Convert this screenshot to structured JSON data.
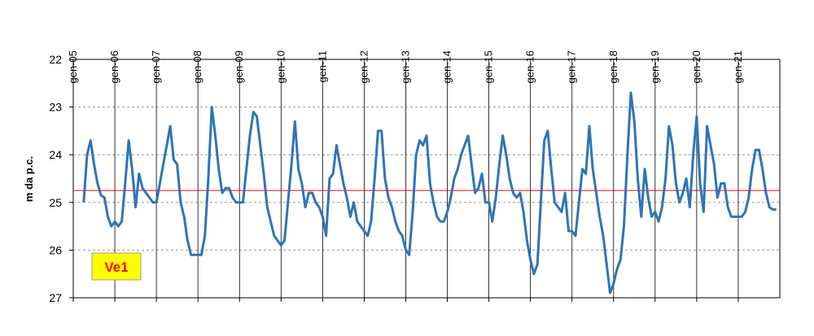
{
  "chart_data": {
    "type": "line",
    "y_label": "m da p.c.",
    "annotation": "Ve1",
    "x": [
      "2005-01",
      "2005-02",
      "2005-03",
      "2005-04",
      "2005-05",
      "2005-06",
      "2005-07",
      "2005-08",
      "2005-09",
      "2005-10",
      "2005-11",
      "2005-12",
      "2006-01",
      "2006-02",
      "2006-03",
      "2006-04",
      "2006-05",
      "2006-06",
      "2006-07",
      "2006-08",
      "2006-09",
      "2006-10",
      "2006-11",
      "2006-12",
      "2007-01",
      "2007-02",
      "2007-03",
      "2007-04",
      "2007-05",
      "2007-06",
      "2007-07",
      "2007-08",
      "2007-09",
      "2007-10",
      "2007-11",
      "2007-12",
      "2008-01",
      "2008-02",
      "2008-03",
      "2008-04",
      "2008-05",
      "2008-06",
      "2008-07",
      "2008-08",
      "2008-09",
      "2008-10",
      "2008-11",
      "2008-12",
      "2009-01",
      "2009-02",
      "2009-03",
      "2009-04",
      "2009-05",
      "2009-06",
      "2009-07",
      "2009-08",
      "2009-09",
      "2009-10",
      "2009-11",
      "2009-12",
      "2010-01",
      "2010-02",
      "2010-03",
      "2010-04",
      "2010-05",
      "2010-06",
      "2010-07",
      "2010-08",
      "2010-09",
      "2010-10",
      "2010-11",
      "2010-12",
      "2011-01",
      "2011-02",
      "2011-03",
      "2011-04",
      "2011-05",
      "2011-06",
      "2011-07",
      "2011-08",
      "2011-09",
      "2011-10",
      "2011-11",
      "2011-12",
      "2012-01",
      "2012-02",
      "2012-03",
      "2012-04",
      "2012-05",
      "2012-06",
      "2012-07",
      "2012-08",
      "2012-09",
      "2012-10",
      "2012-11",
      "2012-12",
      "2013-01",
      "2013-02",
      "2013-03",
      "2013-04",
      "2013-05",
      "2013-06",
      "2013-07",
      "2013-08",
      "2013-09",
      "2013-10",
      "2013-11",
      "2013-12",
      "2014-01",
      "2014-02",
      "2014-03",
      "2014-04",
      "2014-05",
      "2014-06",
      "2014-07",
      "2014-08",
      "2014-09",
      "2014-10",
      "2014-11",
      "2014-12",
      "2015-01",
      "2015-02",
      "2015-03",
      "2015-04",
      "2015-05",
      "2015-06",
      "2015-07",
      "2015-08",
      "2015-09",
      "2015-10",
      "2015-11",
      "2015-12",
      "2016-01",
      "2016-02",
      "2016-03",
      "2016-04",
      "2016-05",
      "2016-06",
      "2016-07",
      "2016-08",
      "2016-09",
      "2016-10",
      "2016-11",
      "2016-12",
      "2017-01",
      "2017-02",
      "2017-03",
      "2017-04",
      "2017-05",
      "2017-06",
      "2017-07",
      "2017-08",
      "2017-09",
      "2017-10",
      "2017-11",
      "2017-12",
      "2018-01",
      "2018-02",
      "2018-03",
      "2018-04",
      "2018-05",
      "2018-06",
      "2018-07",
      "2018-08",
      "2018-09",
      "2018-10",
      "2018-11",
      "2018-12",
      "2019-01",
      "2019-02",
      "2019-03",
      "2019-04",
      "2019-05",
      "2019-06",
      "2019-07",
      "2019-08",
      "2019-09",
      "2019-10",
      "2019-11",
      "2019-12",
      "2020-01",
      "2020-02",
      "2020-03",
      "2020-04",
      "2020-05",
      "2020-06",
      "2020-07",
      "2020-08",
      "2020-09",
      "2020-10",
      "2020-11",
      "2020-12",
      "2021-01",
      "2021-02",
      "2021-03",
      "2021-04",
      "2021-05",
      "2021-06",
      "2021-07",
      "2021-08",
      "2021-09",
      "2021-10",
      "2021-11",
      "2021-12"
    ],
    "series": [
      {
        "color": "#2e75b6",
        "values": [
          null,
          null,
          null,
          25.0,
          24.0,
          23.7,
          24.2,
          24.6,
          24.85,
          24.9,
          25.3,
          25.5,
          25.4,
          25.5,
          25.4,
          24.6,
          23.7,
          24.3,
          25.1,
          24.4,
          24.7,
          24.8,
          24.9,
          25.0,
          25.0,
          24.6,
          24.2,
          23.8,
          23.4,
          24.1,
          24.2,
          25.0,
          25.3,
          25.8,
          26.1,
          26.1,
          26.1,
          26.1,
          25.7,
          24.5,
          23.0,
          23.6,
          24.3,
          24.8,
          24.7,
          24.7,
          24.9,
          25.0,
          25.0,
          25.0,
          24.3,
          23.6,
          23.1,
          23.2,
          23.8,
          24.4,
          25.1,
          25.4,
          25.7,
          25.8,
          25.9,
          25.8,
          25.0,
          24.2,
          23.3,
          24.3,
          24.6,
          25.1,
          24.8,
          24.8,
          25.0,
          25.1,
          25.3,
          25.7,
          24.5,
          24.4,
          23.8,
          24.2,
          24.6,
          24.9,
          25.3,
          25.0,
          25.4,
          25.5,
          25.6,
          25.7,
          25.4,
          24.5,
          23.5,
          23.5,
          24.5,
          24.9,
          25.1,
          25.4,
          25.6,
          25.7,
          26.0,
          26.1,
          25.2,
          24.0,
          23.7,
          23.8,
          23.6,
          24.6,
          25.0,
          25.3,
          25.4,
          25.4,
          25.2,
          24.9,
          24.5,
          24.3,
          24.0,
          23.8,
          23.6,
          24.2,
          24.8,
          24.7,
          24.4,
          25.0,
          25.0,
          25.4,
          24.9,
          24.2,
          23.6,
          24.0,
          24.5,
          24.8,
          24.9,
          24.8,
          25.2,
          25.8,
          26.2,
          26.5,
          26.3,
          25.0,
          23.7,
          23.5,
          24.3,
          25.0,
          25.1,
          25.2,
          24.8,
          25.6,
          25.6,
          25.7,
          25.0,
          24.3,
          24.4,
          23.4,
          24.3,
          24.8,
          25.3,
          25.7,
          26.3,
          26.9,
          26.7,
          26.4,
          26.2,
          25.5,
          24.0,
          22.7,
          23.3,
          24.5,
          25.3,
          24.3,
          24.9,
          25.3,
          25.2,
          25.4,
          25.1,
          24.5,
          23.4,
          23.8,
          24.6,
          25.0,
          24.8,
          24.5,
          25.1,
          24.0,
          23.2,
          24.6,
          25.2,
          23.4,
          23.8,
          24.2,
          24.9,
          24.6,
          24.6,
          25.1,
          25.3,
          25.3,
          25.3,
          25.3,
          25.2,
          24.9,
          24.3,
          23.9,
          23.9,
          24.3,
          24.8,
          25.1,
          25.15,
          25.15
        ]
      }
    ],
    "reference_line": {
      "value": 24.75,
      "color": "#ff0000"
    },
    "xlim": [
      "2005-01",
      "2022-01"
    ],
    "xticks": [
      {
        "value": "2005-01",
        "label": "gen-05"
      },
      {
        "value": "2006-01",
        "label": "gen-06"
      },
      {
        "value": "2007-01",
        "label": "gen-07"
      },
      {
        "value": "2008-01",
        "label": "gen-08"
      },
      {
        "value": "2009-01",
        "label": "gen-09"
      },
      {
        "value": "2010-01",
        "label": "gen-10"
      },
      {
        "value": "2011-01",
        "label": "gen-11"
      },
      {
        "value": "2012-01",
        "label": "gen-12"
      },
      {
        "value": "2013-01",
        "label": "gen-13"
      },
      {
        "value": "2014-01",
        "label": "gen-14"
      },
      {
        "value": "2015-01",
        "label": "gen-15"
      },
      {
        "value": "2016-01",
        "label": "gen-16"
      },
      {
        "value": "2017-01",
        "label": "gen-17"
      },
      {
        "value": "2018-01",
        "label": "gen-18"
      },
      {
        "value": "2019-01",
        "label": "gen-19"
      },
      {
        "value": "2020-01",
        "label": "gen-20"
      },
      {
        "value": "2021-01",
        "label": "gen-21"
      }
    ],
    "ylim": [
      22,
      27
    ],
    "yticks": [
      22,
      23,
      24,
      25,
      26,
      27
    ],
    "y_inverted": true,
    "grid": true
  }
}
